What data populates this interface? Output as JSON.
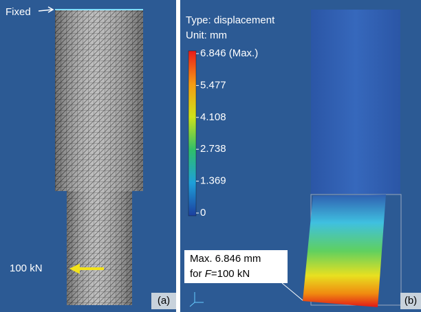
{
  "panel_a": {
    "fixed_label": "Fixed",
    "load_label": "100 kN",
    "panel_label": "(a)"
  },
  "panel_b": {
    "type_label": "Type: displacement",
    "unit_label": "Unit: mm",
    "legend_labels": [
      "6.846 (Max.)",
      "5.477",
      "4.108",
      "2.738",
      "1.369",
      "0"
    ],
    "annotation": {
      "line1": "Max. 6.846 mm",
      "line2_prefix": "for ",
      "line2_italic": "F",
      "line2_suffix": "=100 kN"
    },
    "panel_label": "(b)"
  }
}
